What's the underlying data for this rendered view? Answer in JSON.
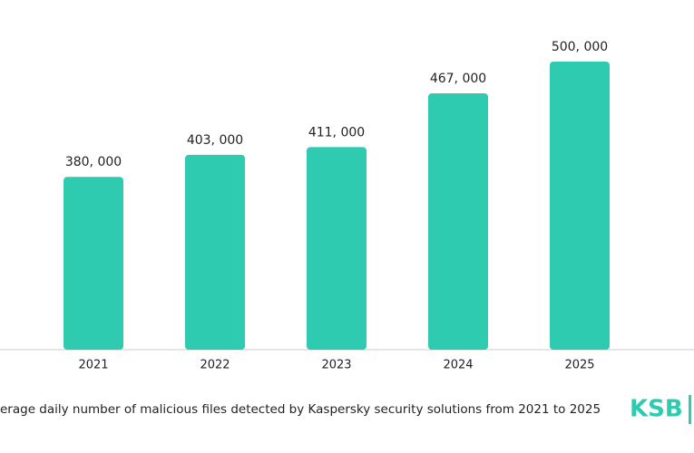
{
  "chart_data": {
    "type": "bar",
    "categories": [
      "2021",
      "2022",
      "2023",
      "2024",
      "2025"
    ],
    "values": [
      380000,
      403000,
      411000,
      467000,
      500000
    ],
    "value_labels": [
      "380, 000",
      "403, 000",
      "411, 000",
      "467, 000",
      "500, 000"
    ],
    "color": "#2ecbb0",
    "ylim": [
      200000,
      560000
    ],
    "caption": "erage daily number of malicious files detected by Kaspersky security solutions from 2021 to 2025",
    "brand": "KSB"
  }
}
